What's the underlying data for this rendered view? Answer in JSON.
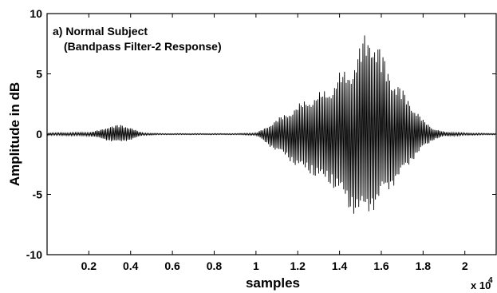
{
  "chart_data": {
    "type": "line",
    "title": "",
    "xlabel": "samples",
    "ylabel": "Amplitude in dB",
    "x_exponent_label": "x 10",
    "x_exponent_power": "4",
    "xlim": [
      0,
      21500
    ],
    "ylim": [
      -10,
      10
    ],
    "x_ticks": [
      2000,
      4000,
      6000,
      8000,
      10000,
      12000,
      14000,
      16000,
      18000,
      20000
    ],
    "x_tick_labels": [
      "0.2",
      "0.4",
      "0.6",
      "0.8",
      "1",
      "1.2",
      "1.4",
      "1.6",
      "1.8",
      "2"
    ],
    "y_ticks": [
      -10,
      -5,
      0,
      5,
      10
    ],
    "y_tick_labels": [
      "-10",
      "-5",
      "0",
      "5",
      "10"
    ],
    "grid": false,
    "annotations": [
      "a) Normal Subject",
      "(Bandpass Filter-2 Response)"
    ],
    "series": [
      {
        "color": "#000000",
        "envelope": {
          "x": [
            0,
            2000,
            2600,
            3000,
            3500,
            4000,
            4300,
            4600,
            5500,
            7000,
            9000,
            10000,
            10500,
            11000,
            11500,
            12000,
            12500,
            13000,
            13500,
            14000,
            14500,
            15000,
            15200,
            15500,
            15800,
            16000,
            16500,
            17000,
            17500,
            18000,
            18500,
            19000,
            20000,
            21500
          ],
          "upper": [
            0.1,
            0.15,
            0.4,
            0.7,
            0.8,
            0.6,
            0.3,
            0.1,
            0.05,
            0.05,
            0.05,
            0.1,
            0.6,
            1.3,
            1.8,
            2.5,
            3.0,
            3.5,
            3.8,
            5.2,
            5.5,
            7.5,
            8.5,
            8.8,
            8.0,
            7.0,
            5.0,
            3.8,
            2.5,
            1.2,
            0.5,
            0.2,
            0.1,
            0.05
          ],
          "lower": [
            -0.1,
            -0.15,
            -0.4,
            -0.6,
            -0.7,
            -0.5,
            -0.3,
            -0.1,
            -0.05,
            -0.05,
            -0.05,
            -0.1,
            -0.8,
            -1.5,
            -2.0,
            -3.0,
            -3.2,
            -4.0,
            -4.2,
            -5.2,
            -6.5,
            -7.2,
            -7.0,
            -6.5,
            -6.2,
            -5.5,
            -4.5,
            -3.5,
            -2.2,
            -1.2,
            -0.5,
            -0.2,
            -0.1,
            -0.05
          ]
        }
      }
    ]
  }
}
